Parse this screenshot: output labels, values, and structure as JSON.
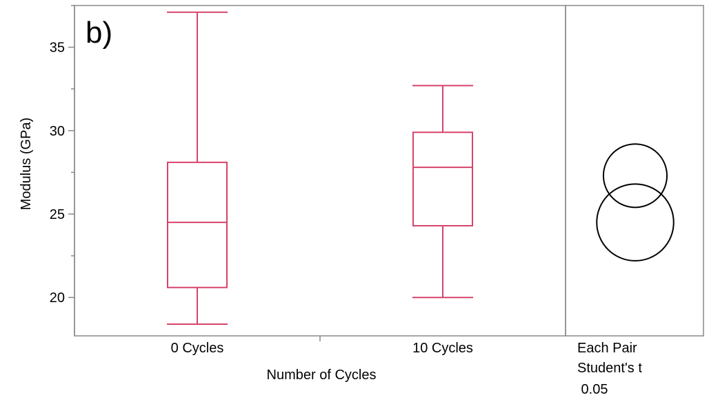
{
  "chart_data": {
    "type": "box",
    "panel_label": "b)",
    "xlabel": "Number of Cycles",
    "ylabel": "Modulus (GPa)",
    "ylim": [
      17.7,
      37.5
    ],
    "yticks": [
      20,
      25,
      30,
      35
    ],
    "categories": [
      "0 Cycles",
      "10 Cycles"
    ],
    "boxes": [
      {
        "category": "0 Cycles",
        "min": 18.4,
        "q1": 20.6,
        "median": 24.5,
        "q3": 28.1,
        "max": 37.1
      },
      {
        "category": "10 Cycles",
        "min": 20.0,
        "q1": 24.3,
        "median": 27.8,
        "q3": 29.9,
        "max": 32.7
      }
    ],
    "comparison": {
      "label_lines": [
        "Each Pair",
        "Student's t",
        " 0.05"
      ],
      "circles": [
        {
          "center": 27.3,
          "radius": 1.9
        },
        {
          "center": 24.5,
          "radius": 2.3
        }
      ]
    },
    "colors": {
      "box": "#d6436a",
      "axis": "#777777",
      "circle": "#000000"
    },
    "grid": false,
    "legend": "none"
  }
}
